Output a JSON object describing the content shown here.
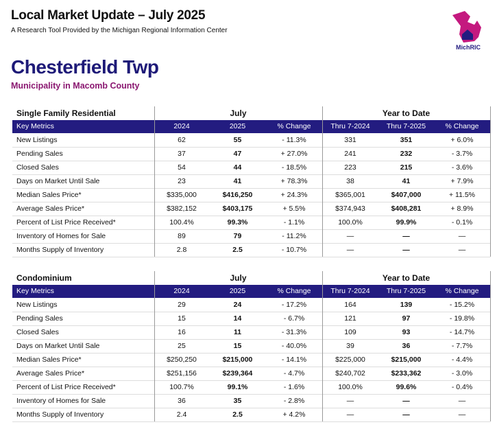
{
  "header": {
    "title": "Local Market Update – July 2025",
    "subtitle": "A Research Tool Provided by the Michigan Regional Information Center",
    "logo": "MichRIC"
  },
  "place": {
    "name": "Chesterfield Twp",
    "subtitle": "Municipality in Macomb County"
  },
  "tables": [
    {
      "title": "Single Family Residential",
      "groups": [
        "July",
        "Year to Date"
      ],
      "columns": [
        "Key Metrics",
        "2024",
        "2025",
        "% Change",
        "Thru 7-2024",
        "Thru 7-2025",
        "% Change"
      ],
      "rows": [
        [
          "New Listings",
          "62",
          "55",
          "- 11.3%",
          "331",
          "351",
          "+ 6.0%"
        ],
        [
          "Pending Sales",
          "37",
          "47",
          "+ 27.0%",
          "241",
          "232",
          "- 3.7%"
        ],
        [
          "Closed Sales",
          "54",
          "44",
          "- 18.5%",
          "223",
          "215",
          "- 3.6%"
        ],
        [
          "Days on Market Until Sale",
          "23",
          "41",
          "+ 78.3%",
          "38",
          "41",
          "+ 7.9%"
        ],
        [
          "Median Sales Price*",
          "$335,000",
          "$416,250",
          "+ 24.3%",
          "$365,001",
          "$407,000",
          "+ 11.5%"
        ],
        [
          "Average Sales Price*",
          "$382,152",
          "$403,175",
          "+ 5.5%",
          "$374,943",
          "$408,281",
          "+ 8.9%"
        ],
        [
          "Percent of List Price Received*",
          "100.4%",
          "99.3%",
          "- 1.1%",
          "100.0%",
          "99.9%",
          "- 0.1%"
        ],
        [
          "Inventory of Homes for Sale",
          "89",
          "79",
          "- 11.2%",
          "—",
          "—",
          "—"
        ],
        [
          "Months Supply of Inventory",
          "2.8",
          "2.5",
          "- 10.7%",
          "—",
          "—",
          "—"
        ]
      ]
    },
    {
      "title": "Condominium",
      "groups": [
        "July",
        "Year to Date"
      ],
      "columns": [
        "Key Metrics",
        "2024",
        "2025",
        "% Change",
        "Thru 7-2024",
        "Thru 7-2025",
        "% Change"
      ],
      "rows": [
        [
          "New Listings",
          "29",
          "24",
          "- 17.2%",
          "164",
          "139",
          "- 15.2%"
        ],
        [
          "Pending Sales",
          "15",
          "14",
          "- 6.7%",
          "121",
          "97",
          "- 19.8%"
        ],
        [
          "Closed Sales",
          "16",
          "11",
          "- 31.3%",
          "109",
          "93",
          "- 14.7%"
        ],
        [
          "Days on Market Until Sale",
          "25",
          "15",
          "- 40.0%",
          "39",
          "36",
          "- 7.7%"
        ],
        [
          "Median Sales Price*",
          "$250,250",
          "$215,000",
          "- 14.1%",
          "$225,000",
          "$215,000",
          "- 4.4%"
        ],
        [
          "Average Sales Price*",
          "$251,156",
          "$239,364",
          "- 4.7%",
          "$240,702",
          "$233,362",
          "- 3.0%"
        ],
        [
          "Percent of List Price Received*",
          "100.7%",
          "99.1%",
          "- 1.6%",
          "100.0%",
          "99.6%",
          "- 0.4%"
        ],
        [
          "Inventory of Homes for Sale",
          "36",
          "35",
          "- 2.8%",
          "—",
          "—",
          "—"
        ],
        [
          "Months Supply of Inventory",
          "2.4",
          "2.5",
          "+ 4.2%",
          "—",
          "—",
          "—"
        ]
      ]
    }
  ]
}
